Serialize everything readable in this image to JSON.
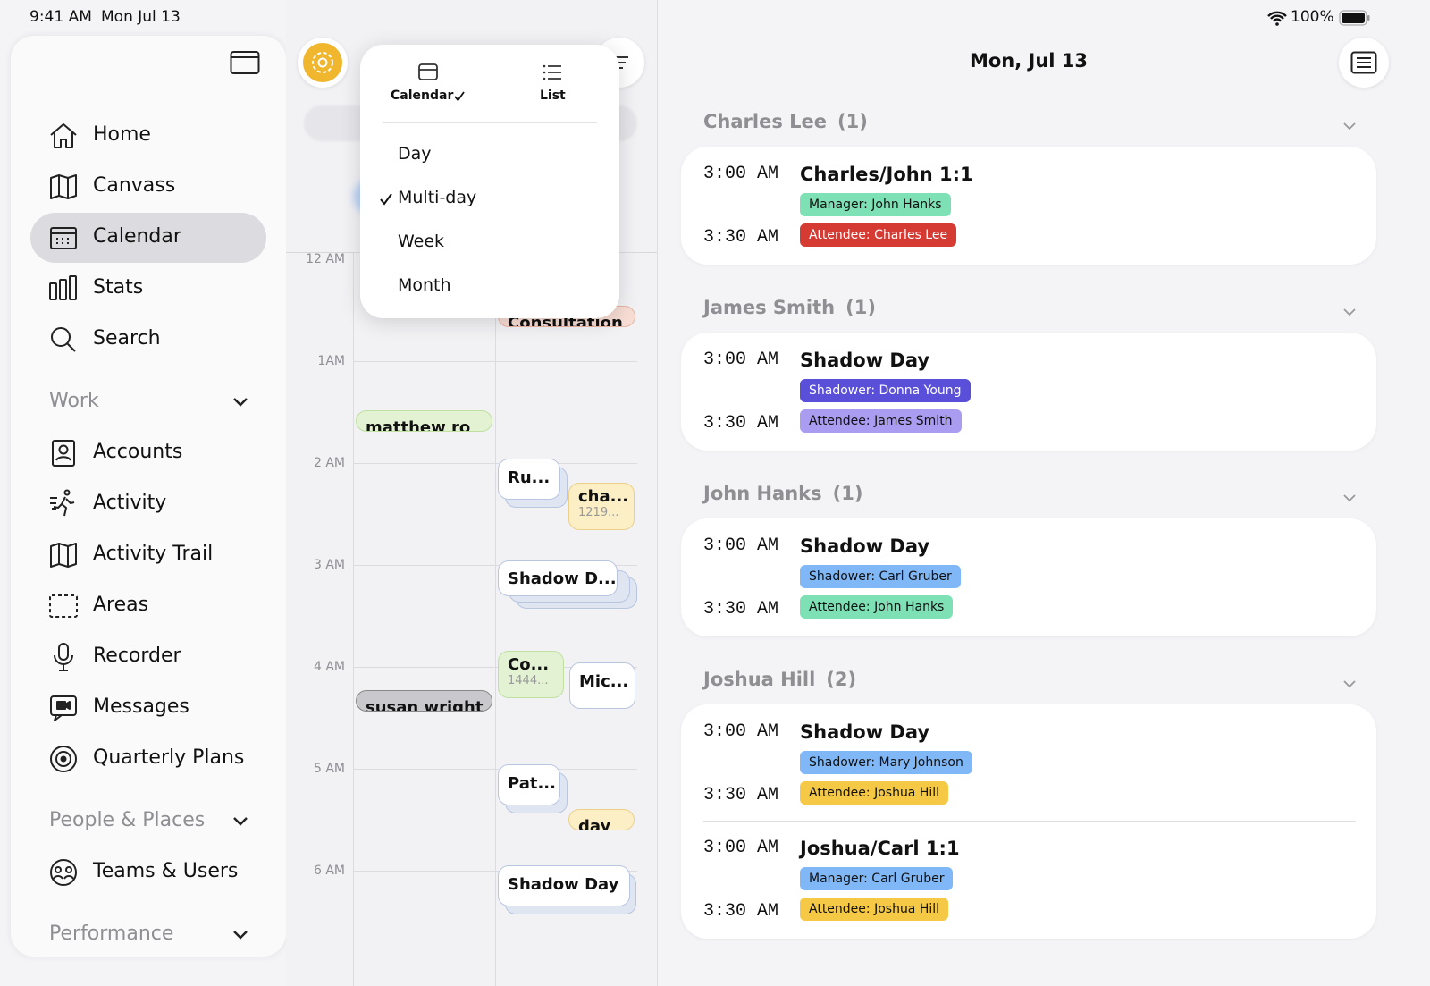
{
  "status_bar": {
    "time": "9:41 AM",
    "date": "Mon Jul 13",
    "battery": "100%"
  },
  "sidebar": {
    "main": [
      "Home",
      "Canvass",
      "Calendar",
      "Stats",
      "Search"
    ],
    "sections": [
      {
        "title": "Work",
        "items": [
          "Accounts",
          "Activity",
          "Activity Trail",
          "Areas",
          "Recorder",
          "Messages",
          "Quarterly Plans"
        ]
      },
      {
        "title": "People & Places",
        "items": [
          "Teams & Users"
        ]
      },
      {
        "title": "Performance",
        "items": []
      }
    ]
  },
  "calendar": {
    "hours": [
      "12 AM",
      "1AM",
      "2 AM",
      "3 AM",
      "4 AM",
      "5 AM",
      "6 AM"
    ],
    "events": [
      {
        "title": "Consultation"
      },
      {
        "title": "matthew ro"
      },
      {
        "title": "Ru..."
      },
      {
        "title": "cha...",
        "subtitle": "1219..."
      },
      {
        "title": "Shadow D..."
      },
      {
        "title": "Co...",
        "subtitle": "1444..."
      },
      {
        "title": "Mic..."
      },
      {
        "title": "susan wright"
      },
      {
        "title": "Pat..."
      },
      {
        "title": "day"
      },
      {
        "title": "Shadow Day"
      }
    ]
  },
  "view_menu": {
    "modes": [
      "Calendar",
      "List"
    ],
    "ranges": [
      "Day",
      "Multi-day",
      "Week",
      "Month"
    ]
  },
  "agenda": {
    "title": "Mon, Jul 13",
    "groups": [
      {
        "name": "Charles Lee",
        "count": "(1)",
        "events": [
          {
            "start": "3:00 AM",
            "end": "3:30 AM",
            "title": "Charles/John 1:1",
            "tags": [
              {
                "label": "Manager: John Hanks",
                "color": "#7ee0b5"
              },
              {
                "label": "Attendee: Charles Lee",
                "color": "#d53a33"
              }
            ]
          }
        ]
      },
      {
        "name": "James Smith",
        "count": "(1)",
        "events": [
          {
            "start": "3:00 AM",
            "end": "3:30 AM",
            "title": "Shadow Day",
            "tags": [
              {
                "label": "Shadower: Donna Young",
                "color": "#5a4fd8"
              },
              {
                "label": "Attendee: James Smith",
                "color": "#a99cf1"
              }
            ]
          }
        ]
      },
      {
        "name": "John Hanks",
        "count": "(1)",
        "events": [
          {
            "start": "3:00 AM",
            "end": "3:30 AM",
            "title": "Shadow Day",
            "tags": [
              {
                "label": "Shadower: Carl Gruber",
                "color": "#80b7f6"
              },
              {
                "label": "Attendee: John Hanks",
                "color": "#7ee0b5"
              }
            ]
          }
        ]
      },
      {
        "name": "Joshua Hill",
        "count": "(2)",
        "events": [
          {
            "start": "3:00 AM",
            "end": "3:30 AM",
            "title": "Shadow Day",
            "tags": [
              {
                "label": "Shadower: Mary Johnson",
                "color": "#80b7f6"
              },
              {
                "label": "Attendee: Joshua Hill",
                "color": "#f5c845"
              }
            ]
          },
          {
            "start": "3:00 AM",
            "end": "3:30 AM",
            "title": "Joshua/Carl 1:1",
            "tags": [
              {
                "label": "Manager: Carl Gruber",
                "color": "#80b7f6"
              },
              {
                "label": "Attendee: Joshua Hill",
                "color": "#f5c845"
              }
            ]
          }
        ]
      }
    ]
  }
}
